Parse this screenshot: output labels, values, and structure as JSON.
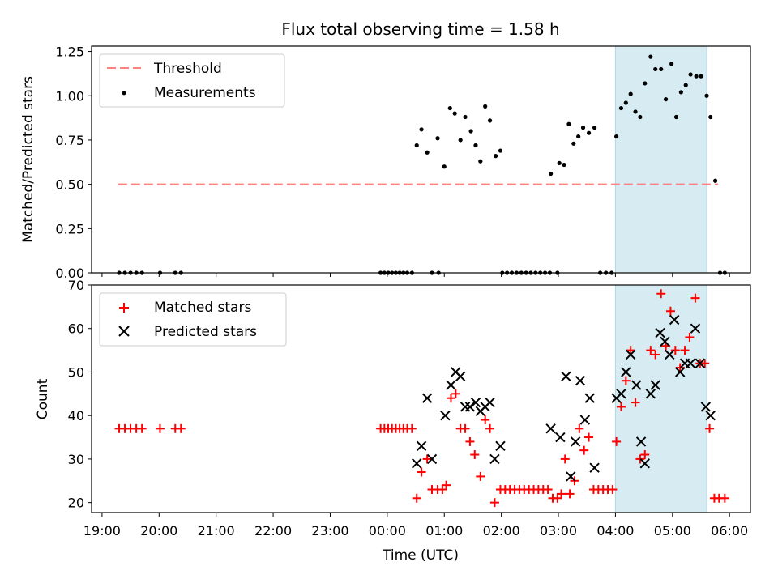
{
  "chart_data": [
    {
      "type": "scatter",
      "title": "Flux total observing time = 1.58 h",
      "xlabel": "",
      "ylabel": "Matched/Predicted stars",
      "ylim": [
        0,
        1.28
      ],
      "yticks": [
        0.0,
        0.25,
        0.5,
        0.75,
        1.0,
        1.25
      ],
      "ytick_labels": [
        "0.00",
        "0.25",
        "0.50",
        "0.75",
        "1.00",
        "1.25"
      ],
      "legend_placement": "top-left",
      "highlight_span": [
        "04:00",
        "05:36"
      ],
      "threshold": {
        "name": "Threshold",
        "value": 0.5,
        "x_range": [
          "19:17",
          "05:48"
        ],
        "color": "#ff7f7f"
      },
      "series": [
        {
          "name": "Measurements",
          "marker": "dot",
          "color": "#000000",
          "points": [
            [
              "19:18",
              0
            ],
            [
              "19:24",
              0
            ],
            [
              "19:30",
              0
            ],
            [
              "19:36",
              0
            ],
            [
              "19:42",
              0
            ],
            [
              "20:01",
              0
            ],
            [
              "20:17",
              0
            ],
            [
              "20:23",
              0
            ],
            [
              "23:53",
              0
            ],
            [
              "23:57",
              0
            ],
            [
              "24:01",
              0
            ],
            [
              "24:05",
              0
            ],
            [
              "24:09",
              0
            ],
            [
              "24:13",
              0
            ],
            [
              "24:17",
              0
            ],
            [
              "24:21",
              0
            ],
            [
              "24:26",
              0
            ],
            [
              "24:31",
              0.72
            ],
            [
              "24:36",
              0.81
            ],
            [
              "24:42",
              0.68
            ],
            [
              "24:47",
              0
            ],
            [
              "24:53",
              0.76
            ],
            [
              "24:54",
              0
            ],
            [
              "25:00",
              0.6
            ],
            [
              "25:06",
              0.93
            ],
            [
              "25:11",
              0.9
            ],
            [
              "25:17",
              0.75
            ],
            [
              "25:22",
              0.88
            ],
            [
              "25:28",
              0.8
            ],
            [
              "25:33",
              0.72
            ],
            [
              "25:38",
              0.63
            ],
            [
              "25:43",
              0.94
            ],
            [
              "25:48",
              0.86
            ],
            [
              "25:54",
              0.66
            ],
            [
              "25:59",
              0.69
            ],
            [
              "26:01",
              0
            ],
            [
              "26:06",
              0
            ],
            [
              "26:11",
              0
            ],
            [
              "26:16",
              0
            ],
            [
              "26:21",
              0
            ],
            [
              "26:26",
              0
            ],
            [
              "26:31",
              0
            ],
            [
              "26:36",
              0
            ],
            [
              "26:41",
              0
            ],
            [
              "26:46",
              0
            ],
            [
              "26:51",
              0
            ],
            [
              "26:52",
              0.56
            ],
            [
              "26:59",
              0
            ],
            [
              "27:01",
              0.62
            ],
            [
              "27:06",
              0.61
            ],
            [
              "27:11",
              0.84
            ],
            [
              "27:16",
              0.73
            ],
            [
              "27:21",
              0.77
            ],
            [
              "27:26",
              0.82
            ],
            [
              "27:32",
              0.79
            ],
            [
              "27:38",
              0.82
            ],
            [
              "27:44",
              0
            ],
            [
              "27:50",
              0
            ],
            [
              "27:56",
              0
            ],
            [
              "28:01",
              0.77
            ],
            [
              "28:06",
              0.93
            ],
            [
              "28:11",
              0.96
            ],
            [
              "28:16",
              1.01
            ],
            [
              "28:21",
              0.91
            ],
            [
              "28:26",
              0.88
            ],
            [
              "28:31",
              1.07
            ],
            [
              "28:37",
              1.22
            ],
            [
              "28:42",
              1.15
            ],
            [
              "28:48",
              1.15
            ],
            [
              "28:53",
              0.98
            ],
            [
              "28:59",
              1.18
            ],
            [
              "29:04",
              0.88
            ],
            [
              "29:09",
              1.02
            ],
            [
              "29:14",
              1.06
            ],
            [
              "29:19",
              1.12
            ],
            [
              "29:25",
              1.11
            ],
            [
              "29:30",
              1.11
            ],
            [
              "29:36",
              1.0
            ],
            [
              "29:40",
              0.88
            ],
            [
              "29:45",
              0.52
            ],
            [
              "29:50",
              0
            ],
            [
              "29:55",
              0
            ]
          ]
        }
      ]
    },
    {
      "type": "scatter",
      "title": "",
      "xlabel": "Time (UTC)",
      "ylabel": "Count",
      "ylim": [
        17.7,
        70
      ],
      "yticks": [
        20,
        30,
        40,
        50,
        60,
        70
      ],
      "xlim": [
        "18:49",
        "06:22"
      ],
      "xtick_labels": [
        "19:00",
        "20:00",
        "21:00",
        "22:00",
        "23:00",
        "00:00",
        "01:00",
        "02:00",
        "03:00",
        "04:00",
        "05:00",
        "06:00"
      ],
      "legend_placement": "top-left",
      "highlight_span": [
        "04:00",
        "05:36"
      ],
      "series": [
        {
          "name": "Matched stars",
          "marker": "plus",
          "color": "#ff0000",
          "points": [
            [
              "19:18",
              37
            ],
            [
              "19:24",
              37
            ],
            [
              "19:30",
              37
            ],
            [
              "19:36",
              37
            ],
            [
              "19:42",
              37
            ],
            [
              "20:01",
              37
            ],
            [
              "20:17",
              37
            ],
            [
              "20:23",
              37
            ],
            [
              "23:53",
              37
            ],
            [
              "23:57",
              37
            ],
            [
              "24:01",
              37
            ],
            [
              "24:05",
              37
            ],
            [
              "24:09",
              37
            ],
            [
              "24:13",
              37
            ],
            [
              "24:17",
              37
            ],
            [
              "24:21",
              37
            ],
            [
              "24:26",
              37
            ],
            [
              "24:31",
              21
            ],
            [
              "24:36",
              27
            ],
            [
              "24:42",
              30
            ],
            [
              "24:47",
              23
            ],
            [
              "24:53",
              23
            ],
            [
              "24:58",
              23
            ],
            [
              "25:02",
              24
            ],
            [
              "25:07",
              44
            ],
            [
              "25:12",
              45
            ],
            [
              "25:17",
              37
            ],
            [
              "25:22",
              37
            ],
            [
              "25:27",
              34
            ],
            [
              "25:32",
              31
            ],
            [
              "25:38",
              26
            ],
            [
              "25:43",
              39
            ],
            [
              "25:48",
              37
            ],
            [
              "25:53",
              20
            ],
            [
              "25:59",
              23
            ],
            [
              "26:04",
              23
            ],
            [
              "26:09",
              23
            ],
            [
              "26:14",
              23
            ],
            [
              "26:19",
              23
            ],
            [
              "26:24",
              23
            ],
            [
              "26:29",
              23
            ],
            [
              "26:34",
              23
            ],
            [
              "26:39",
              23
            ],
            [
              "26:44",
              23
            ],
            [
              "26:49",
              23
            ],
            [
              "26:54",
              21
            ],
            [
              "26:59",
              21
            ],
            [
              "27:03",
              22
            ],
            [
              "27:07",
              30
            ],
            [
              "27:12",
              22
            ],
            [
              "27:17",
              25
            ],
            [
              "27:22",
              37
            ],
            [
              "27:27",
              32
            ],
            [
              "27:32",
              35
            ],
            [
              "27:37",
              23
            ],
            [
              "27:42",
              23
            ],
            [
              "27:47",
              23
            ],
            [
              "27:52",
              23
            ],
            [
              "27:57",
              23
            ],
            [
              "28:01",
              34
            ],
            [
              "28:06",
              42
            ],
            [
              "28:11",
              48
            ],
            [
              "28:16",
              55
            ],
            [
              "28:21",
              43
            ],
            [
              "28:26",
              30
            ],
            [
              "28:31",
              31
            ],
            [
              "28:37",
              55
            ],
            [
              "28:42",
              54
            ],
            [
              "28:48",
              68
            ],
            [
              "28:53",
              56
            ],
            [
              "28:58",
              64
            ],
            [
              "29:03",
              55
            ],
            [
              "29:08",
              51
            ],
            [
              "29:13",
              55
            ],
            [
              "29:18",
              58
            ],
            [
              "29:24",
              67
            ],
            [
              "29:29",
              52
            ],
            [
              "29:34",
              52
            ],
            [
              "29:39",
              37
            ],
            [
              "29:44",
              21
            ],
            [
              "29:49",
              21
            ],
            [
              "29:55",
              21
            ]
          ]
        },
        {
          "name": "Predicted stars",
          "marker": "x",
          "color": "#000000",
          "points": [
            [
              "24:31",
              29
            ],
            [
              "24:36",
              33
            ],
            [
              "24:42",
              44
            ],
            [
              "24:47",
              30
            ],
            [
              "25:01",
              40
            ],
            [
              "25:07",
              47
            ],
            [
              "25:12",
              50
            ],
            [
              "25:17",
              49
            ],
            [
              "25:22",
              42
            ],
            [
              "25:27",
              42
            ],
            [
              "25:33",
              43
            ],
            [
              "25:38",
              41
            ],
            [
              "25:43",
              42
            ],
            [
              "25:48",
              43
            ],
            [
              "25:53",
              30
            ],
            [
              "25:59",
              33
            ],
            [
              "26:52",
              37
            ],
            [
              "27:02",
              35
            ],
            [
              "27:08",
              49
            ],
            [
              "27:13",
              26
            ],
            [
              "27:18",
              34
            ],
            [
              "27:23",
              48
            ],
            [
              "27:28",
              39
            ],
            [
              "27:33",
              44
            ],
            [
              "27:38",
              28
            ],
            [
              "28:01",
              44
            ],
            [
              "28:06",
              45
            ],
            [
              "28:11",
              50
            ],
            [
              "28:16",
              54
            ],
            [
              "28:22",
              47
            ],
            [
              "28:27",
              34
            ],
            [
              "28:31",
              29
            ],
            [
              "28:37",
              45
            ],
            [
              "28:42",
              47
            ],
            [
              "28:47",
              59
            ],
            [
              "28:52",
              57
            ],
            [
              "28:57",
              54
            ],
            [
              "29:02",
              62
            ],
            [
              "29:08",
              50
            ],
            [
              "29:13",
              52
            ],
            [
              "29:19",
              52
            ],
            [
              "29:24",
              60
            ],
            [
              "29:29",
              52
            ],
            [
              "29:35",
              42
            ],
            [
              "29:40",
              40
            ]
          ]
        }
      ]
    }
  ],
  "colors": {
    "threshold": "#ff7f7f",
    "matched": "#ff0000",
    "predicted": "#000000",
    "measurements": "#000000",
    "span": "#add8e6"
  }
}
